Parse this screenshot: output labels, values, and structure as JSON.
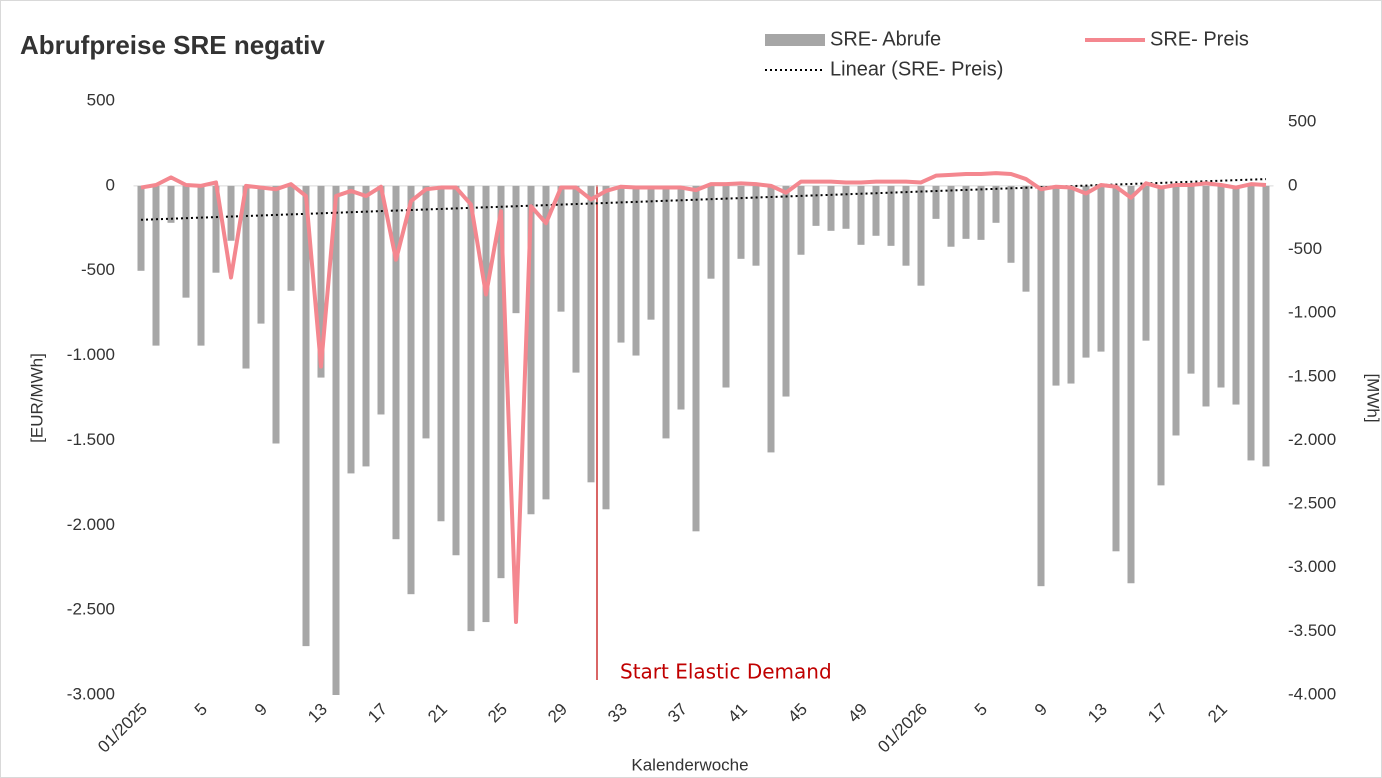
{
  "chart_data": {
    "type": "combo",
    "title": "Abrufpreise SRE negativ",
    "x_label": "Kalenderwoche",
    "y_label": "[EUR/MWh]",
    "y2_label": "[MWh]",
    "annotation": "Start Elastic Demand",
    "categories": [
      "01/2025",
      null,
      null,
      null,
      "5",
      null,
      null,
      null,
      "9",
      null,
      null,
      null,
      "13",
      null,
      null,
      null,
      "17",
      null,
      null,
      null,
      "21",
      null,
      null,
      null,
      "25",
      null,
      null,
      null,
      "29",
      null,
      null,
      null,
      "33",
      null,
      null,
      null,
      "37",
      null,
      null,
      null,
      "41",
      null,
      null,
      null,
      "45",
      null,
      null,
      null,
      "49",
      null,
      null,
      null,
      "01/2026",
      null,
      null,
      null,
      "5",
      null,
      null,
      null,
      "9",
      null,
      null,
      null,
      "13",
      null,
      null,
      null,
      "17",
      null,
      null,
      null,
      "21",
      null,
      null,
      null
    ],
    "ylim": [
      -3000,
      500
    ],
    "yticks": [
      500,
      0,
      -500,
      {
        "value": -1000,
        "label": "-1.000"
      },
      {
        "value": -1500,
        "label": "-1.500"
      },
      {
        "value": -2000,
        "label": "-2.000"
      },
      {
        "value": -2500,
        "label": "-2.500"
      },
      {
        "value": -3000,
        "label": "-3.000"
      }
    ],
    "y2lim": [
      -4000,
      667
    ],
    "y2ticks": [
      500,
      0,
      -500,
      {
        "value": -1000,
        "label": "-1.000"
      },
      {
        "value": -1500,
        "label": "-1.500"
      },
      {
        "value": -2000,
        "label": "-2.000"
      },
      {
        "value": -2500,
        "label": "-2.500"
      },
      {
        "value": -3000,
        "label": "-3.000"
      },
      {
        "value": -3500,
        "label": "-3.500"
      },
      {
        "value": -4000,
        "label": "-4.000"
      }
    ],
    "series": [
      {
        "name": "SRE- Abrufe",
        "type": "bar",
        "axis": "y2",
        "color": "#a6a6a6",
        "values": [
          -667,
          -1255,
          -290,
          -878,
          -1255,
          -682,
          -431,
          -1435,
          -1082,
          -2024,
          -824,
          -3616,
          -1506,
          -4000,
          -2259,
          -2204,
          -1796,
          -2776,
          -3208,
          -1984,
          -2635,
          -2902,
          -3498,
          -3427,
          -3082,
          -1000,
          -2580,
          -2463,
          -988,
          -1467,
          -2329,
          -2541,
          -1231,
          -1333,
          -1051,
          -1984,
          -1757,
          -2714,
          -729,
          -1584,
          -573,
          -627,
          -2094,
          -1655,
          -541,
          -314,
          -353,
          -337,
          -463,
          -392,
          -471,
          -627,
          -784,
          -259,
          -478,
          -416,
          -424,
          -290,
          -604,
          -831,
          -3145,
          -1569,
          -1553,
          -1349,
          -1302,
          -2871,
          -3122,
          -1216,
          -2353,
          -1961,
          -1475,
          -1733,
          -1584,
          -1718,
          -2157,
          -2204
        ]
      },
      {
        "name": "SRE- Preis",
        "type": "line",
        "color": "#f4878f",
        "values": [
          -10,
          5,
          50,
          5,
          0,
          20,
          -540,
          0,
          -10,
          -20,
          10,
          -60,
          -1065,
          -60,
          -30,
          -60,
          -5,
          -435,
          -90,
          -20,
          -10,
          -10,
          -110,
          -640,
          -150,
          -2570,
          -120,
          -220,
          -10,
          -10,
          -80,
          -30,
          -5,
          -10,
          -10,
          -10,
          -10,
          -25,
          10,
          10,
          15,
          10,
          0,
          -40,
          25,
          25,
          25,
          20,
          20,
          25,
          25,
          25,
          20,
          60,
          65,
          70,
          70,
          75,
          70,
          40,
          -20,
          -5,
          -10,
          -45,
          5,
          -5,
          -70,
          15,
          -10,
          5,
          5,
          15,
          5,
          -10,
          10,
          5
        ]
      },
      {
        "name": "Linear (SRE- Preis)",
        "type": "trend",
        "color": "#000000",
        "values": [
          -200,
          -196.8,
          -193.6,
          -190.4,
          -187.2,
          -184,
          -180.8,
          -177.6,
          -174.4,
          -171.2,
          -168,
          -164.8,
          -161.6,
          -158.4,
          -155.2,
          -152,
          -148.8,
          -145.6,
          -142.4,
          -139.2,
          -136,
          -132.8,
          -129.6,
          -126.4,
          -123.2,
          -120,
          -116.8,
          -113.6,
          -110.4,
          -107.2,
          -104,
          -100.8,
          -97.6,
          -94.4,
          -91.2,
          -88,
          -84.8,
          -81.6,
          -78.4,
          -75.2,
          -72,
          -68.8,
          -65.6,
          -62.4,
          -59.2,
          -56,
          -52.8,
          -49.6,
          -46.4,
          -43.2,
          -40,
          -36.8,
          -33.6,
          -30.4,
          -27.2,
          -24,
          -20.8,
          -17.6,
          -14.4,
          -11.2,
          -8,
          -4.8,
          -1.6,
          1.6,
          4.8,
          8,
          11.2,
          14.4,
          17.6,
          20.8,
          24,
          27.2,
          30.4,
          33.6,
          36.8,
          40
        ]
      }
    ]
  }
}
